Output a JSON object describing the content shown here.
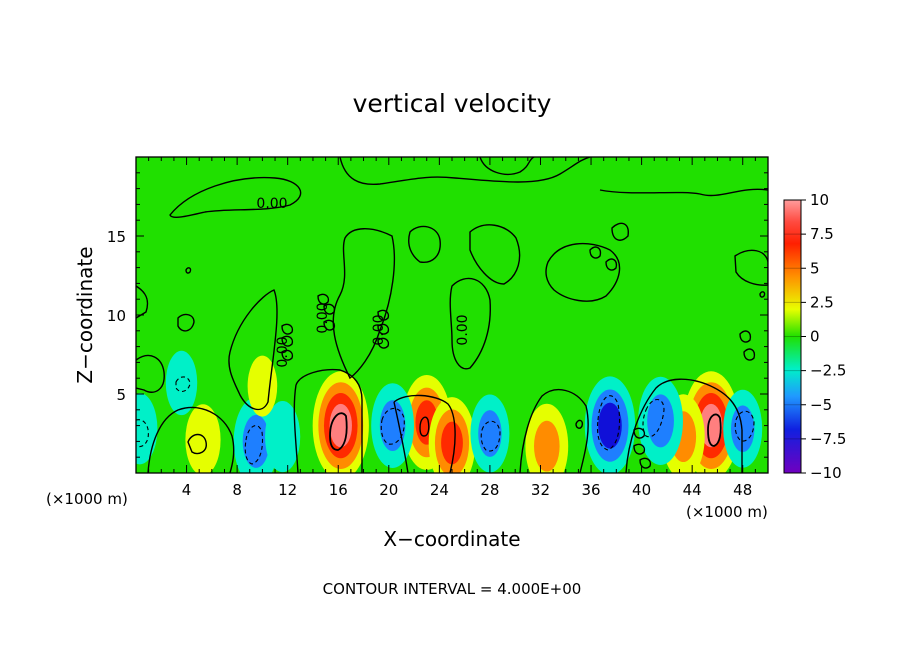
{
  "chart_data": {
    "type": "heatmap",
    "title": "vertical velocity",
    "xlabel": "X−coordinate",
    "ylabel": "Z−coordinate",
    "x_unit_left": "(×1000 m)",
    "x_unit_right": "(×1000 m)",
    "note": "CONTOUR INTERVAL = 4.000E+00",
    "xlim": [
      0,
      50
    ],
    "ylim": [
      0,
      20
    ],
    "x_ticks": [
      "4",
      "8",
      "12",
      "16",
      "20",
      "24",
      "28",
      "32",
      "36",
      "40",
      "44",
      "48"
    ],
    "y_ticks": [
      "5",
      "10",
      "15"
    ],
    "colorbar": {
      "range": [
        -10,
        10
      ],
      "tick_labels": [
        "10",
        "7.5",
        "5",
        "2.5",
        "0",
        "−2.5",
        "−5",
        "−7.5",
        "−10"
      ]
    },
    "contour_labels": [
      "0.00",
      "0.00",
      "0.00",
      "0.00",
      "0.00"
    ],
    "features": [
      {
        "x": 16.2,
        "z": 3.0,
        "w": 9.5
      },
      {
        "x": 23.0,
        "z": 3.2,
        "w": 7.5
      },
      {
        "x": 25.0,
        "z": 1.9,
        "w": 7.0
      },
      {
        "x": 45.5,
        "z": 3.0,
        "w": 9.5
      },
      {
        "x": 43.3,
        "z": 2.3,
        "w": 6.0
      },
      {
        "x": 32.5,
        "z": 1.7,
        "w": 6.0
      },
      {
        "x": 5.3,
        "z": 2.1,
        "w": 4.0
      },
      {
        "x": 9.5,
        "z": 2.0,
        "w": -6.5
      },
      {
        "x": 11.6,
        "z": 2.3,
        "w": -4.0
      },
      {
        "x": 20.3,
        "z": 3.0,
        "w": -6.0
      },
      {
        "x": 28.0,
        "z": 2.5,
        "w": -5.0
      },
      {
        "x": 37.5,
        "z": 3.0,
        "w": -8.0
      },
      {
        "x": 41.5,
        "z": 3.3,
        "w": -6.5
      },
      {
        "x": 48.0,
        "z": 2.8,
        "w": -5.0
      },
      {
        "x": 0.3,
        "z": 2.8,
        "w": -4.0
      },
      {
        "x": 3.6,
        "z": 5.7,
        "w": -3.0
      },
      {
        "x": 10.0,
        "z": 5.5,
        "w": 2.5
      }
    ],
    "colors": {
      "max": "#ff7f7f",
      "c7_5": "#ff2a00",
      "c5": "#ff8c00",
      "c2_5": "#e5ff00",
      "zero": "#20e000",
      "cm2_5": "#00f0c8",
      "cm5": "#1e7fff",
      "cm7_5": "#1010d8",
      "min": "#6a00c0"
    }
  }
}
